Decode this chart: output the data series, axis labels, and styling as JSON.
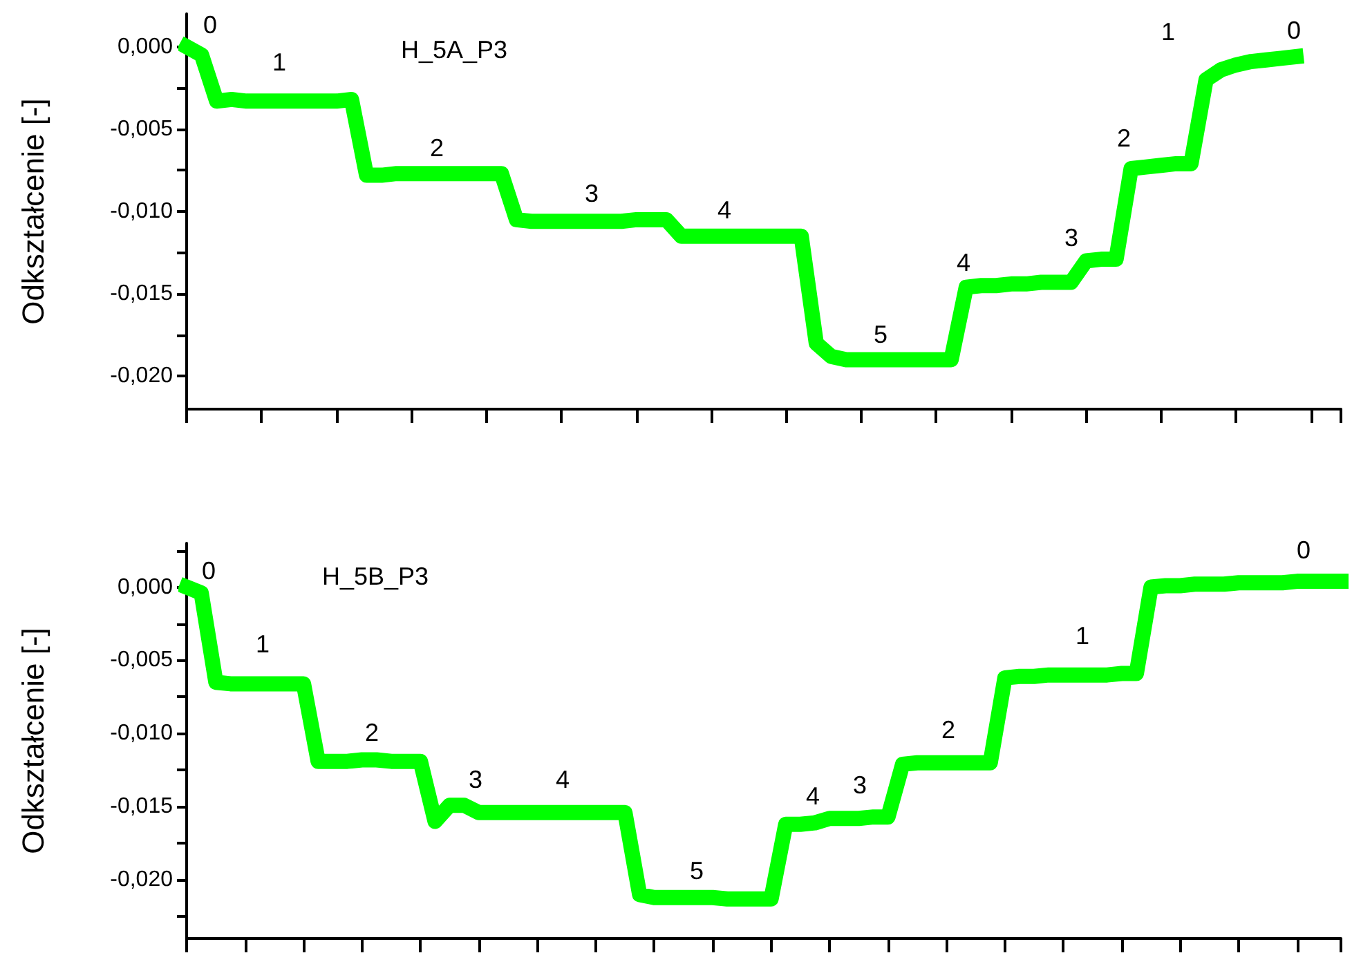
{
  "chart_data": [
    {
      "type": "line",
      "title": "H_5A_P3",
      "ylabel": "Odkształcenie [-]",
      "tick_labels": "y",
      "categories": [
        null,
        null,
        null,
        null,
        null,
        null,
        null,
        null,
        null,
        null,
        null,
        null,
        null,
        null,
        null,
        null,
        null,
        null,
        null,
        null,
        null,
        null,
        null,
        null,
        null,
        null,
        null,
        null,
        null,
        null,
        null,
        null,
        null,
        null,
        null,
        null,
        null,
        null,
        null,
        null,
        null,
        null,
        null,
        null,
        null,
        null,
        null,
        null,
        null,
        null,
        null,
        null,
        null,
        null,
        null,
        null,
        null,
        null,
        null,
        null,
        null,
        null,
        null,
        null,
        null,
        null,
        null,
        null,
        null,
        null,
        null,
        null,
        null,
        null,
        null,
        null,
        null,
        null
      ],
      "ylim": [
        -0.022,
        0.002
      ],
      "yticks": [
        {
          "value": 0,
          "label": "0,000"
        },
        {
          "value": -0.0025,
          "label": null
        },
        {
          "value": -0.005,
          "label": "-0,005"
        },
        {
          "value": -0.0075,
          "label": null
        },
        {
          "value": -0.01,
          "label": "-0,010"
        },
        {
          "value": -0.0125,
          "label": null
        },
        {
          "value": -0.015,
          "label": "-0,015"
        },
        {
          "value": -0.0175,
          "label": null
        },
        {
          "value": -0.02,
          "label": "-0,020"
        }
      ],
      "series": [
        {
          "color": "#00ff00",
          "values": [
            0,
            -0.0005,
            -0.0033,
            -0.0032,
            -0.0033,
            -0.0033,
            -0.0033,
            -0.0033,
            -0.0033,
            -0.0033,
            -0.0033,
            -0.0032,
            -0.0078,
            -0.0078,
            -0.0077,
            -0.0077,
            -0.0077,
            -0.0077,
            -0.0077,
            -0.0077,
            -0.0077,
            -0.0077,
            -0.0105,
            -0.0106,
            -0.0106,
            -0.0106,
            -0.0106,
            -0.0106,
            -0.0106,
            -0.0106,
            -0.0105,
            -0.0105,
            -0.0105,
            -0.0115,
            -0.0115,
            -0.0115,
            -0.0115,
            -0.0115,
            -0.0115,
            -0.0115,
            -0.0115,
            -0.0115,
            -0.018,
            -0.0188,
            -0.019,
            -0.019,
            -0.019,
            -0.019,
            -0.019,
            -0.019,
            -0.019,
            -0.019,
            -0.0146,
            -0.0145,
            -0.0145,
            -0.0144,
            -0.0144,
            -0.0143,
            -0.0143,
            -0.0143,
            -0.013,
            -0.0129,
            -0.0129,
            -0.0074,
            -0.0073,
            -0.0072,
            -0.0071,
            -0.0071,
            -0.002,
            -0.0014,
            -0.0011,
            -0.0009,
            -0.0008,
            -0.0007,
            -0.0006,
            null,
            null,
            null
          ]
        }
      ],
      "annotations": [
        "0",
        "1",
        "2",
        "3",
        "4",
        "5",
        "4",
        "3",
        "2",
        "1",
        "0"
      ]
    },
    {
      "type": "line",
      "title": "H_5B_P3",
      "ylabel": "Odkształcenie [-]",
      "tick_labels": "y",
      "categories": [
        null,
        null,
        null,
        null,
        null,
        null,
        null,
        null,
        null,
        null,
        null,
        null,
        null,
        null,
        null,
        null,
        null,
        null,
        null,
        null,
        null,
        null,
        null,
        null,
        null,
        null,
        null,
        null,
        null,
        null,
        null,
        null,
        null,
        null,
        null,
        null,
        null,
        null,
        null,
        null,
        null,
        null,
        null,
        null,
        null,
        null,
        null,
        null,
        null,
        null,
        null,
        null,
        null,
        null,
        null,
        null,
        null,
        null,
        null,
        null,
        null,
        null,
        null,
        null,
        null,
        null,
        null,
        null,
        null,
        null,
        null,
        null,
        null,
        null,
        null,
        null,
        null,
        null,
        null,
        null
      ],
      "ylim": [
        -0.024,
        0.003
      ],
      "yticks": [
        {
          "value": 0.0025,
          "label": null
        },
        {
          "value": 0,
          "label": "0,000"
        },
        {
          "value": -0.0025,
          "label": null
        },
        {
          "value": -0.005,
          "label": "-0,005"
        },
        {
          "value": -0.0075,
          "label": null
        },
        {
          "value": -0.01,
          "label": "-0,010"
        },
        {
          "value": -0.0125,
          "label": null
        },
        {
          "value": -0.015,
          "label": "-0,015"
        },
        {
          "value": -0.0175,
          "label": null
        },
        {
          "value": -0.02,
          "label": "-0,020"
        },
        {
          "value": -0.0225,
          "label": null
        }
      ],
      "series": [
        {
          "color": "#00ff00",
          "values": [
            0,
            -0.0004,
            -0.0065,
            -0.0066,
            -0.0066,
            -0.0066,
            -0.0066,
            -0.0066,
            -0.0066,
            -0.0119,
            -0.0119,
            -0.0119,
            -0.0118,
            -0.0118,
            -0.0119,
            -0.0119,
            -0.0119,
            -0.016,
            -0.0149,
            -0.0149,
            -0.0154,
            -0.0154,
            -0.0154,
            -0.0154,
            -0.0154,
            -0.0154,
            -0.0154,
            -0.0154,
            -0.0154,
            -0.0154,
            -0.0154,
            -0.021,
            -0.0212,
            -0.0212,
            -0.0212,
            -0.0212,
            -0.0212,
            -0.0213,
            -0.0213,
            -0.0213,
            -0.0213,
            -0.0162,
            -0.0162,
            -0.0161,
            -0.0158,
            -0.0158,
            -0.0158,
            -0.0157,
            -0.0157,
            -0.0121,
            -0.012,
            -0.012,
            -0.012,
            -0.012,
            -0.012,
            -0.012,
            -0.0062,
            -0.0061,
            -0.0061,
            -0.006,
            -0.006,
            -0.006,
            -0.006,
            -0.006,
            -0.0059,
            -0.0059,
            0,
            0.0001,
            0.0001,
            0.0002,
            0.0002,
            0.0002,
            0.0003,
            0.0003,
            0.0003,
            0.0003,
            0.0004,
            0.0004,
            0.0004,
            0.0004
          ]
        }
      ],
      "annotations": [
        "0",
        "1",
        "2",
        "3",
        "4",
        "5",
        "4",
        "3",
        "2",
        "1",
        "0"
      ]
    }
  ]
}
